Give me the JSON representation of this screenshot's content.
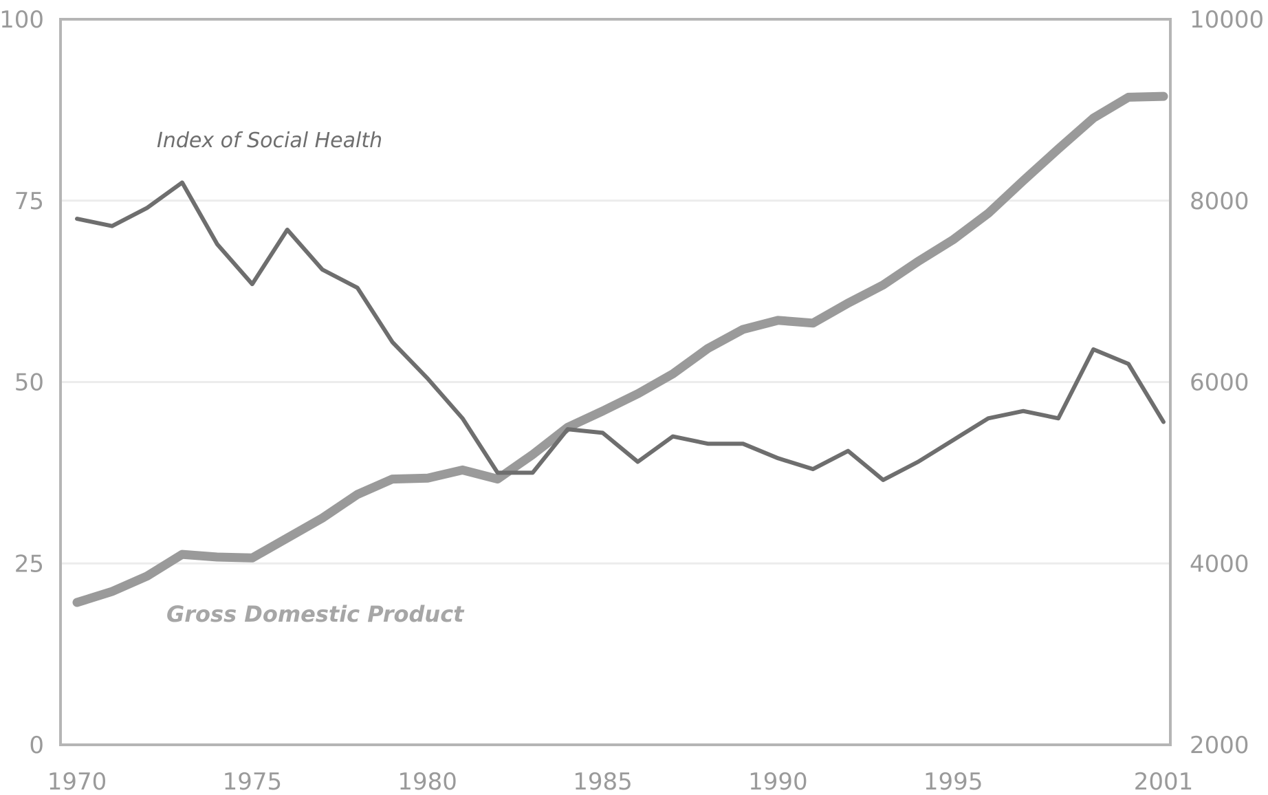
{
  "chart_data": {
    "type": "line",
    "x": [
      1970,
      1971,
      1972,
      1973,
      1974,
      1975,
      1976,
      1977,
      1978,
      1979,
      1980,
      1981,
      1982,
      1983,
      1984,
      1985,
      1986,
      1987,
      1988,
      1989,
      1990,
      1991,
      1992,
      1993,
      1994,
      1995,
      1996,
      1997,
      1998,
      1999,
      2000,
      2001
    ],
    "x_ticks": [
      "1970",
      "1975",
      "1980",
      "1985",
      "1990",
      "1995",
      "2001"
    ],
    "x_tick_values": [
      1970,
      1975,
      1980,
      1985,
      1990,
      1995,
      2001
    ],
    "xlim": [
      1970,
      2001
    ],
    "left_axis": {
      "ylim": [
        0,
        100
      ],
      "ticks": [
        "0",
        "25",
        "50",
        "75",
        "100"
      ],
      "tick_values": [
        0,
        25,
        50,
        75,
        100
      ]
    },
    "right_axis": {
      "ylim": [
        2000,
        10000
      ],
      "ticks": [
        "2000",
        "4000",
        "6000",
        "8000",
        "10000"
      ],
      "tick_values": [
        2000,
        4000,
        6000,
        8000,
        10000
      ]
    },
    "grid": "horizontal",
    "series": [
      {
        "name": "Index of Social Health",
        "axis": "left",
        "color": "#6e6e6e",
        "values": [
          72.5,
          71.5,
          74,
          77.5,
          69,
          63.5,
          71,
          65.5,
          63,
          55.5,
          50.5,
          45,
          37.5,
          37.5,
          43.5,
          43,
          39,
          42.5,
          41.5,
          41.5,
          39.5,
          38,
          40.5,
          36.5,
          39,
          42,
          45,
          46,
          45,
          54.5,
          52.5,
          44.5
        ]
      },
      {
        "name": "Gross Domestic Product",
        "axis": "right",
        "color": "#9a9a9a",
        "values": [
          3570,
          3690,
          3860,
          4100,
          4070,
          4060,
          4280,
          4500,
          4760,
          4930,
          4940,
          5030,
          4930,
          5200,
          5500,
          5680,
          5870,
          6090,
          6370,
          6580,
          6680,
          6650,
          6870,
          7070,
          7330,
          7570,
          7860,
          8220,
          8570,
          8910,
          9140,
          9150
        ]
      }
    ]
  }
}
